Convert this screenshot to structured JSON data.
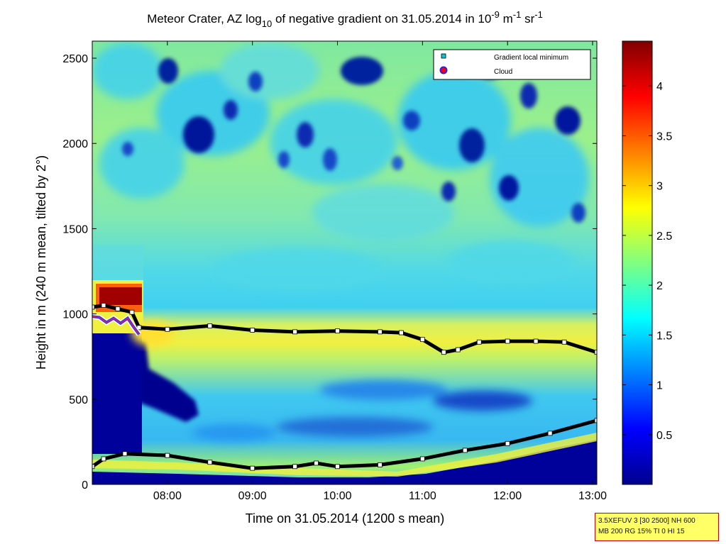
{
  "chart_data": {
    "type": "heatmap",
    "title": {
      "prefix": "Meteor Crater, AZ log",
      "sub": "10",
      "middle": " of negative gradient on 31.05.2014 in 10",
      "exp1": "-9",
      "unit1": " m",
      "exp2": "-1",
      "unit2": " sr",
      "exp3": "-1"
    },
    "xlabel": "Time on 31.05.2014 (1200 s mean)",
    "ylabel": "Height in m (240 m mean, tilted by 2°)",
    "xlim": [
      "07:07",
      "13:03"
    ],
    "ylim": [
      0,
      2600
    ],
    "xticks": [
      "08:00",
      "09:00",
      "10:00",
      "11:00",
      "12:00",
      "13:00"
    ],
    "yticks": [
      0,
      500,
      1000,
      1500,
      2000,
      2500
    ],
    "colorbar": {
      "colormap": "jet",
      "range": [
        0,
        4.45
      ],
      "ticks": [
        0.5,
        1,
        1.5,
        2,
        2.5,
        3,
        3.5,
        4
      ]
    },
    "legend": {
      "position": "top-right",
      "entries": [
        {
          "label": "Gradient local minimum",
          "marker": "square",
          "color": "#00c8d0"
        },
        {
          "label": "Cloud",
          "marker": "circle",
          "color": "#ff0000"
        }
      ]
    },
    "series": [
      {
        "name": "Gradient local minimum",
        "x": [
          "07:07",
          "07:15",
          "07:25",
          "07:35",
          "07:40",
          "08:00",
          "08:30",
          "09:00",
          "09:30",
          "10:00",
          "10:30",
          "10:45",
          "11:00",
          "11:15",
          "11:25",
          "11:40",
          "12:00",
          "12:20",
          "12:40",
          "13:03"
        ],
        "y": [
          1040,
          1050,
          1030,
          1010,
          920,
          910,
          930,
          905,
          895,
          900,
          895,
          890,
          850,
          775,
          790,
          835,
          840,
          840,
          835,
          775
        ]
      },
      {
        "name": "Gradient local minimum (lower)",
        "x": [
          "07:07",
          "07:15",
          "07:30",
          "08:00",
          "08:30",
          "09:00",
          "09:30",
          "09:45",
          "10:00",
          "10:30",
          "11:00",
          "11:30",
          "12:00",
          "12:30",
          "13:03"
        ],
        "y": [
          105,
          150,
          180,
          170,
          130,
          95,
          105,
          125,
          105,
          115,
          150,
          200,
          240,
          300,
          375
        ]
      },
      {
        "name": "Cloud",
        "x": [
          "07:07",
          "07:12",
          "07:17",
          "07:22",
          "07:27",
          "07:32",
          "07:36",
          "07:40"
        ],
        "y": [
          985,
          980,
          950,
          975,
          945,
          975,
          925,
          880
        ]
      }
    ]
  },
  "info_box": {
    "line1": "3.5XEFUV 3 [30 2500] NH 600",
    "line2": "MB 200 RG 15% TI 0 HI 15"
  },
  "colors": {
    "axis": "#000000",
    "legend_bg": "#ffffff",
    "info_bg": "#ffff66",
    "info_border": "#cc0000"
  }
}
